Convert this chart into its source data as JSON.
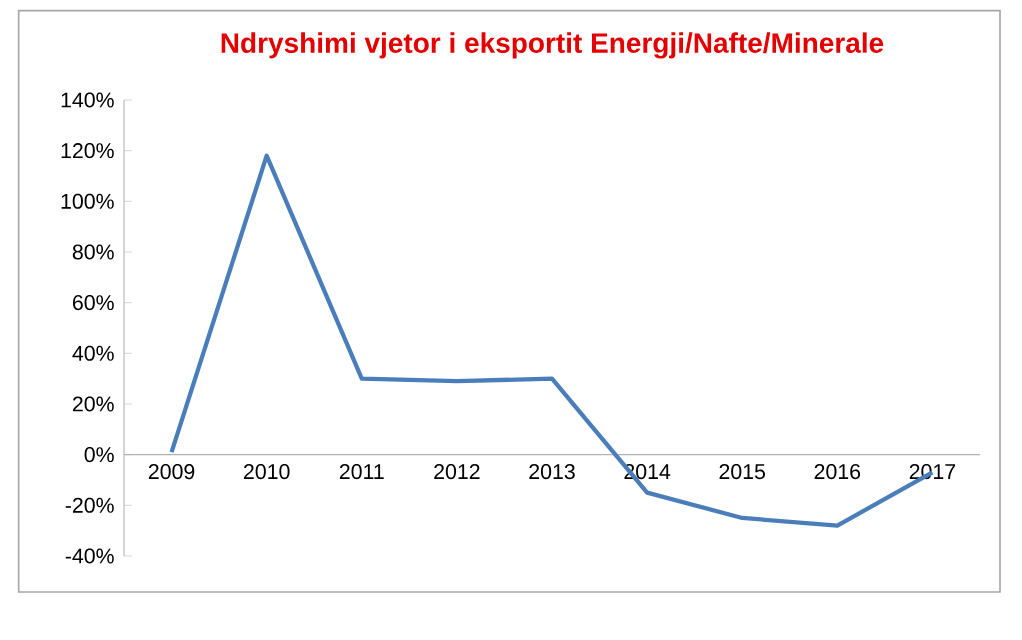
{
  "chart_data": {
    "type": "line",
    "title": "Ndryshimi vjetor i eksportit Energji/Nafte/Minerale",
    "categories": [
      "2009",
      "2010",
      "2011",
      "2012",
      "2013",
      "2014",
      "2015",
      "2016",
      "2017"
    ],
    "series": [
      {
        "color": "#4a7ebb",
        "values": [
          1,
          118,
          30,
          29,
          30,
          -15,
          -25,
          -28,
          -7
        ]
      }
    ],
    "ylim": [
      -40,
      140
    ],
    "yticks": [
      {
        "value": -40,
        "label": "-40%"
      },
      {
        "value": -20,
        "label": "-20%"
      },
      {
        "value": 0,
        "label": "0%"
      },
      {
        "value": 20,
        "label": "20%"
      },
      {
        "value": 40,
        "label": "40%"
      },
      {
        "value": 60,
        "label": "60%"
      },
      {
        "value": 80,
        "label": "80%"
      },
      {
        "value": 100,
        "label": "100%"
      },
      {
        "value": 120,
        "label": "120%"
      },
      {
        "value": 140,
        "label": "140%"
      }
    ],
    "grid": false,
    "marker": "none",
    "line_style": "solid"
  }
}
